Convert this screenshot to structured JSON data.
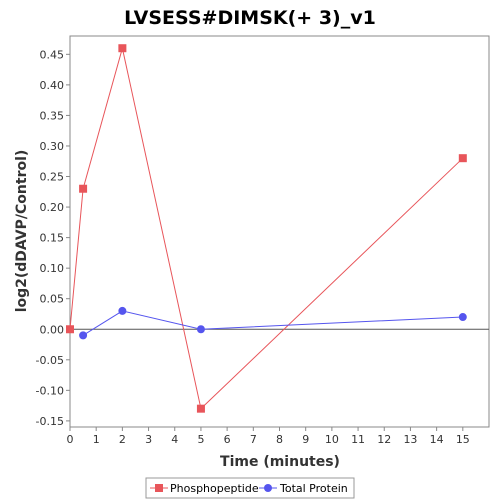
{
  "chart_data": {
    "type": "line",
    "title": "LVSESS#DIMSK(+ 3)_v1",
    "xlabel": "Time (minutes)",
    "ylabel": "log2(dDAVP/Control)",
    "xlim": [
      0,
      16
    ],
    "ylim": [
      -0.16,
      0.48
    ],
    "x_ticks": [
      0,
      1,
      2,
      3,
      4,
      5,
      6,
      7,
      8,
      9,
      10,
      11,
      12,
      13,
      14,
      15
    ],
    "y_ticks": [
      -0.15,
      -0.1,
      -0.05,
      0.0,
      0.05,
      0.1,
      0.15,
      0.2,
      0.25,
      0.3,
      0.35,
      0.4,
      0.45
    ],
    "y_tick_labels": [
      "-0.15",
      "-0.10",
      "-0.05",
      "0.00",
      "0.05",
      "0.10",
      "0.15",
      "0.20",
      "0.25",
      "0.30",
      "0.35",
      "0.40",
      "0.45"
    ],
    "zero_line": true,
    "grid": false,
    "legend_position": "bottom",
    "series": [
      {
        "name": "Phosphopeptide",
        "color": "#e8555a",
        "marker": "square",
        "x": [
          0,
          0.5,
          2,
          5,
          15
        ],
        "y": [
          0.0,
          0.23,
          0.46,
          -0.13,
          0.28
        ]
      },
      {
        "name": "Total Protein",
        "color": "#5555ee",
        "marker": "circle",
        "x": [
          0.5,
          2,
          5,
          15
        ],
        "y": [
          -0.01,
          0.03,
          0.0,
          0.02
        ]
      }
    ]
  }
}
